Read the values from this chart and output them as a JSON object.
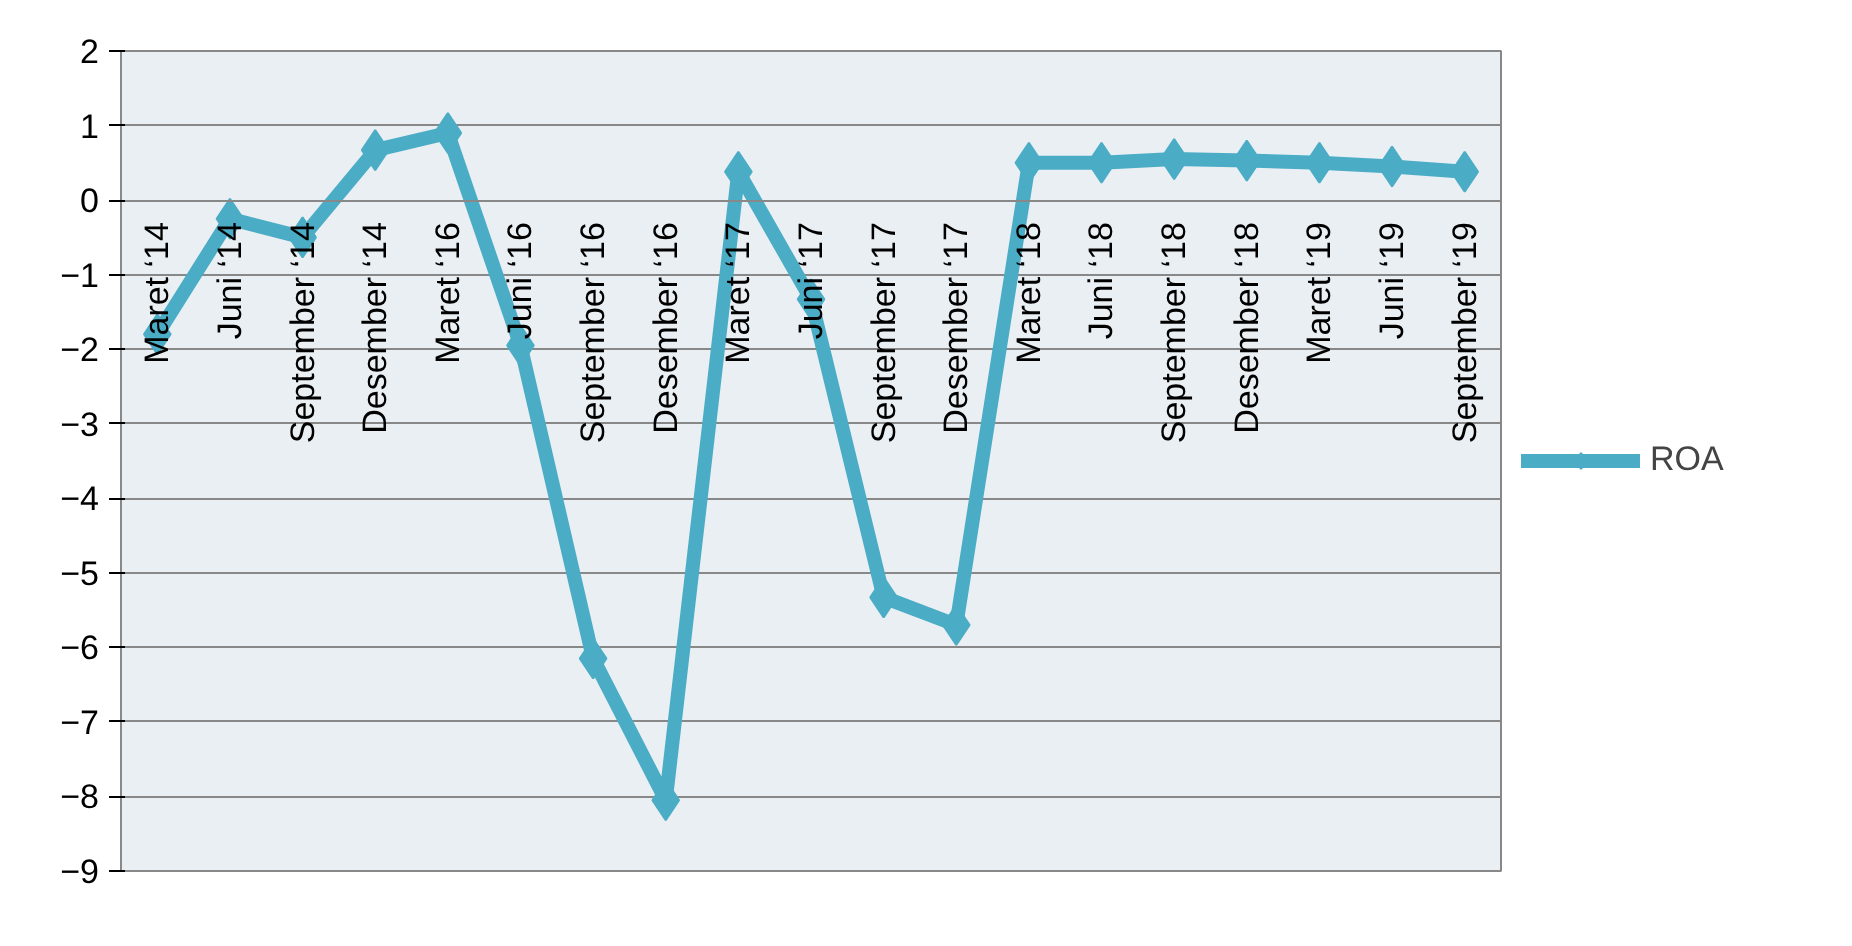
{
  "chart_data": {
    "type": "line",
    "categories": [
      "Maret ‘14",
      "Juni ‘14",
      "September ‘14",
      "Desember ‘14",
      "Maret ‘16",
      "Juni ‘16",
      "September ‘16",
      "Desember ‘16",
      "Maret ‘17",
      "Juni ‘17",
      "September ‘17",
      "Desember ‘17",
      "Maret ‘18",
      "Juni ‘18",
      "September ‘18",
      "Desember ‘18",
      "Maret ‘19",
      "Juni ‘19",
      "September ‘19"
    ],
    "series": [
      {
        "name": "ROA",
        "color": "#4bacc6",
        "values": [
          -1.8,
          -0.25,
          -0.5,
          0.67,
          0.9,
          -1.95,
          -6.15,
          -8.05,
          0.38,
          -1.33,
          -5.33,
          -5.7,
          0.5,
          0.5,
          0.55,
          0.53,
          0.5,
          0.45,
          0.38
        ]
      }
    ],
    "ylim": [
      -9,
      2
    ],
    "yticks": [
      -9,
      -8,
      -7,
      -6,
      -5,
      -4,
      -3,
      -2,
      -1,
      0,
      1,
      2
    ],
    "grid": "y",
    "legend": "right",
    "marker": "diamond",
    "line_style": "solid"
  }
}
